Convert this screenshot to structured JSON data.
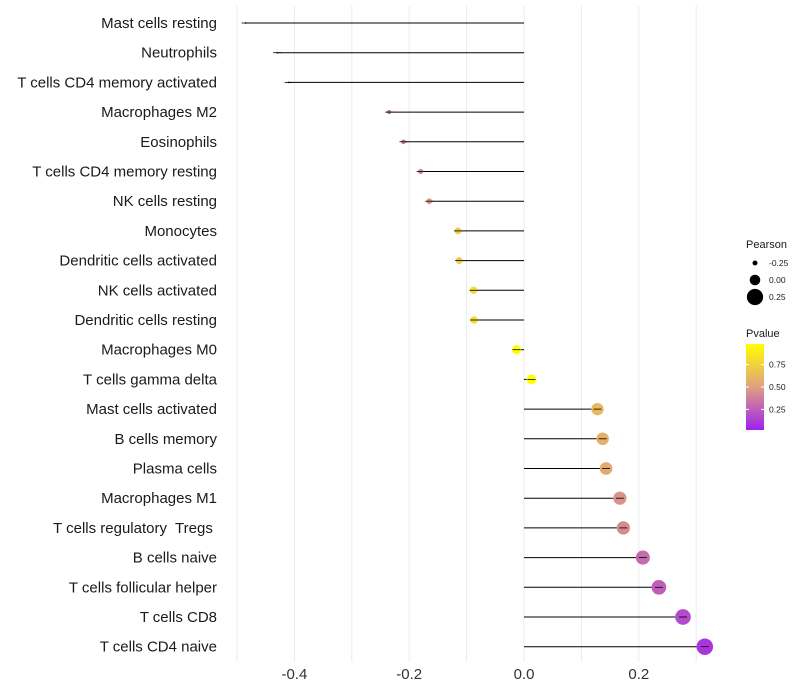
{
  "chart_data": {
    "type": "lollipop",
    "title": "",
    "xlabel": "",
    "ylabel": "",
    "xlim": [
      -0.5,
      0.33
    ],
    "xticks": [
      -0.4,
      -0.2,
      0.0,
      0.2
    ],
    "xtick_labels": [
      "-0.4",
      "-0.2",
      "0.0",
      "0.2"
    ],
    "categories": [
      "Mast cells resting",
      "Neutrophils",
      "T cells CD4 memory activated",
      "Macrophages M2",
      "Eosinophils",
      "T cells CD4 memory resting",
      "NK cells resting",
      "Monocytes",
      "Dendritic cells activated",
      "NK cells activated",
      "Dendritic cells resting",
      "Macrophages M0",
      "T cells gamma delta",
      "Mast cells activated",
      "B cells memory",
      "Plasma cells",
      "Macrophages M1",
      "T cells regulatory  Tregs ",
      "B cells naive",
      "T cells follicular helper",
      "T cells CD8",
      "T cells CD4 naive"
    ],
    "values": [
      -0.485,
      -0.43,
      -0.41,
      -0.235,
      -0.21,
      -0.18,
      -0.165,
      -0.115,
      -0.113,
      -0.088,
      -0.087,
      -0.013,
      0.013,
      0.128,
      0.137,
      0.143,
      0.167,
      0.173,
      0.207,
      0.235,
      0.277,
      0.315
    ],
    "pvalues": [
      0.02,
      0.05,
      0.06,
      0.3,
      0.35,
      0.42,
      0.45,
      0.72,
      0.72,
      0.8,
      0.8,
      0.97,
      0.98,
      0.62,
      0.58,
      0.55,
      0.45,
      0.42,
      0.3,
      0.25,
      0.18,
      0.1
    ],
    "size_legend": {
      "title": "Pearson",
      "labels": [
        "-0.25",
        "0.00",
        "0.25"
      ],
      "values": [
        -0.25,
        0.0,
        0.25
      ]
    },
    "color_legend": {
      "title": "Pvalue",
      "labels": [
        "0.75",
        "0.50",
        "0.25"
      ],
      "values": [
        0.75,
        0.5,
        0.25
      ],
      "range": [
        0.02,
        0.98
      ],
      "colors": {
        "low": "#a020f0",
        "mid": "#e0a080",
        "high": "#ffff00"
      }
    }
  }
}
